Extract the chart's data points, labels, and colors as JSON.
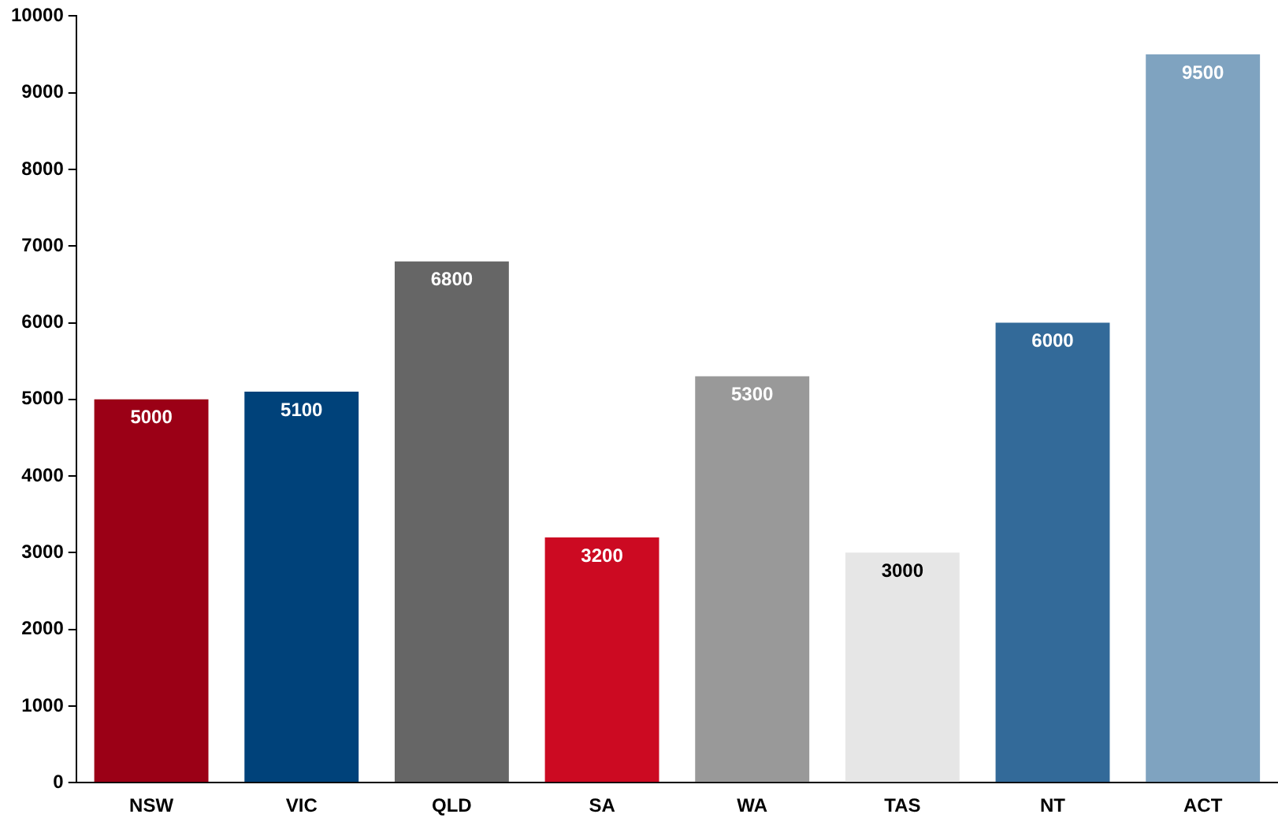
{
  "chart_data": {
    "type": "bar",
    "categories": [
      "NSW",
      "VIC",
      "QLD",
      "SA",
      "WA",
      "TAS",
      "NT",
      "ACT"
    ],
    "values": [
      5000,
      5100,
      6800,
      3200,
      5300,
      3000,
      6000,
      9500
    ],
    "colors": [
      "#9b0016",
      "#00427a",
      "#666666",
      "#cc0a22",
      "#999999",
      "#e6e6e6",
      "#336a99",
      "#7fa3c0"
    ],
    "ylim": [
      0,
      10000
    ],
    "yticks": [
      0,
      1000,
      2000,
      3000,
      4000,
      5000,
      6000,
      7000,
      8000,
      9000,
      10000
    ],
    "grid": false,
    "legend": false,
    "data_labels": true
  }
}
